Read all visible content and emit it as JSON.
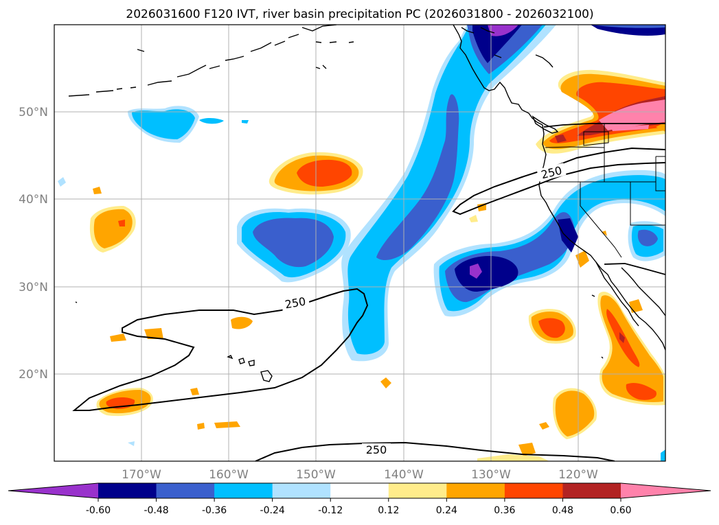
{
  "title": "2026031600 F120 IVT, river basin precipitation PC (2026031800 - 2026032100)",
  "lat_labels": [
    "50°N",
    "40°N",
    "30°N",
    "20°N"
  ],
  "lon_labels": [
    "170°W",
    "160°W",
    "150°W",
    "140°W",
    "130°W",
    "120°W"
  ],
  "contour_label": "250",
  "colorbar": {
    "ticks": [
      "-0.60",
      "-0.48",
      "-0.36",
      "-0.24",
      "-0.12",
      "0.12",
      "0.24",
      "0.36",
      "0.48",
      "0.60"
    ],
    "colors": [
      "#9932cc",
      "#00008b",
      "#3a5fcd",
      "#00bfff",
      "#b0e2ff",
      "#ffffff",
      "#ffec8b",
      "#ffa500",
      "#ff4500",
      "#b22222",
      "#ff82ab"
    ]
  },
  "colors": {
    "purple": "#9932cc",
    "navy": "#00008b",
    "royal": "#3a5fcd",
    "sky": "#00bfff",
    "pale_blue": "#b0e2ff",
    "pale_yellow": "#ffec8b",
    "orange": "#ffa500",
    "red_orange": "#ff4500",
    "firebrick": "#b22222",
    "pink": "#ff82ab"
  }
}
